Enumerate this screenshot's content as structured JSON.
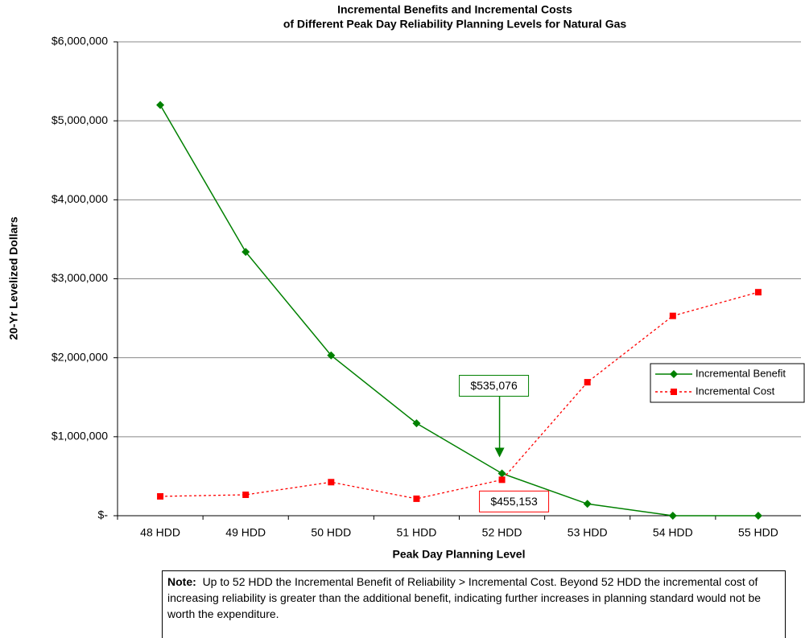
{
  "chart_data": {
    "type": "line",
    "title": [
      "Incremental Benefits and Incremental Costs",
      "of Different Peak Day Reliability Planning Levels for Natural Gas"
    ],
    "x_label": "Peak Day Planning Level",
    "y_label": "20-Yr Levelized Dollars",
    "categories": [
      "48 HDD",
      "49 HDD",
      "50 HDD",
      "51 HDD",
      "52 HDD",
      "53 HDD",
      "54 HDD",
      "55 HDD"
    ],
    "series": [
      {
        "name": "Incremental Benefit",
        "color": "#008000",
        "dash": false,
        "marker": "diamond",
        "values": [
          5200000,
          3340000,
          2030000,
          1170000,
          535076,
          150000,
          0,
          0
        ]
      },
      {
        "name": "Incremental Cost",
        "color": "#ff0000",
        "dash": true,
        "marker": "square",
        "values": [
          245000,
          265000,
          425000,
          215000,
          455153,
          1690000,
          2530000,
          2830000
        ]
      }
    ],
    "ylim": [
      0,
      6000000
    ],
    "yticks": [
      {
        "value": 0,
        "label": "$-"
      },
      {
        "value": 1000000,
        "label": "$1,000,000"
      },
      {
        "value": 2000000,
        "label": "$2,000,000"
      },
      {
        "value": 3000000,
        "label": "$3,000,000"
      },
      {
        "value": 4000000,
        "label": "$4,000,000"
      },
      {
        "value": 5000000,
        "label": "$5,000,000"
      },
      {
        "value": 6000000,
        "label": "$6,000,000"
      }
    ],
    "grid": true,
    "legend": "right",
    "annotations": [
      {
        "text": "$535,076",
        "series": 0,
        "index": 4,
        "color": "#008000",
        "arrow": true
      },
      {
        "text": "$455,153",
        "series": 1,
        "index": 4,
        "color": "#ff0000",
        "arrow": false
      }
    ],
    "note": {
      "label": "Note:",
      "text": "Up to 52 HDD the Incremental Benefit of Reliability > Incremental Cost.  Beyond 52 HDD the incremental cost of increasing reliability is greater than the additional benefit, indicating further increases in planning standard would not be worth the expenditure."
    }
  }
}
